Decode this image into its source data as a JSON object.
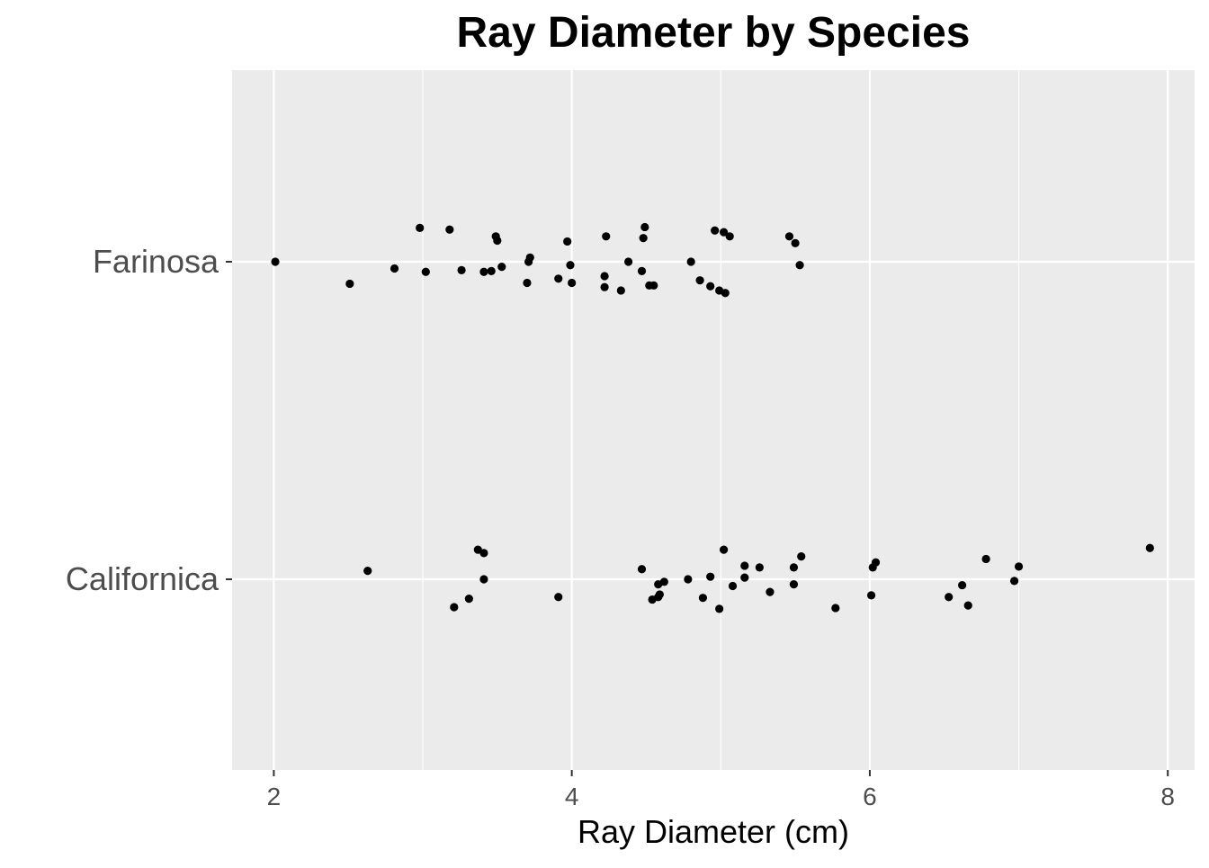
{
  "chart_data": {
    "type": "scatter",
    "title": "Ray Diameter by Species",
    "xlabel": "Ray Diameter (cm)",
    "ylabel": "",
    "xlim": [
      1.72,
      8.18
    ],
    "x_ticks": [
      2,
      4,
      6,
      8
    ],
    "x_tick_labels": [
      "2",
      "4",
      "6",
      "8"
    ],
    "categories": [
      "Californica",
      "Farinosa"
    ],
    "jitter": true,
    "grid": true,
    "legend": "none",
    "colors": {
      "panel_background": "#ebebeb",
      "grid_line": "#ffffff",
      "point": "#000000",
      "tick_label": "#4d4d4d",
      "tick_mark": "#333333"
    },
    "series": [
      {
        "category": "Farinosa",
        "points": [
          {
            "x": 2.01,
            "y": 0.0
          },
          {
            "x": 2.51,
            "y": -0.26
          },
          {
            "x": 2.81,
            "y": -0.08
          },
          {
            "x": 2.98,
            "y": 0.4
          },
          {
            "x": 3.02,
            "y": -0.12
          },
          {
            "x": 3.18,
            "y": 0.38
          },
          {
            "x": 3.26,
            "y": -0.1
          },
          {
            "x": 3.41,
            "y": -0.12
          },
          {
            "x": 3.46,
            "y": -0.11
          },
          {
            "x": 3.49,
            "y": 0.3
          },
          {
            "x": 3.5,
            "y": 0.25
          },
          {
            "x": 3.53,
            "y": -0.06
          },
          {
            "x": 3.7,
            "y": -0.25
          },
          {
            "x": 3.71,
            "y": 0.0
          },
          {
            "x": 3.72,
            "y": 0.05
          },
          {
            "x": 3.91,
            "y": -0.2
          },
          {
            "x": 3.97,
            "y": 0.24
          },
          {
            "x": 3.99,
            "y": -0.04
          },
          {
            "x": 4.0,
            "y": -0.25
          },
          {
            "x": 4.22,
            "y": -0.3
          },
          {
            "x": 4.22,
            "y": -0.17
          },
          {
            "x": 4.23,
            "y": 0.3
          },
          {
            "x": 4.33,
            "y": -0.34
          },
          {
            "x": 4.38,
            "y": 0.0
          },
          {
            "x": 4.47,
            "y": -0.11
          },
          {
            "x": 4.48,
            "y": 0.28
          },
          {
            "x": 4.49,
            "y": 0.41
          },
          {
            "x": 4.52,
            "y": -0.28
          },
          {
            "x": 4.55,
            "y": -0.28
          },
          {
            "x": 4.8,
            "y": 0.0
          },
          {
            "x": 4.86,
            "y": -0.22
          },
          {
            "x": 4.93,
            "y": -0.29
          },
          {
            "x": 4.96,
            "y": 0.37
          },
          {
            "x": 4.99,
            "y": -0.34
          },
          {
            "x": 5.02,
            "y": 0.35
          },
          {
            "x": 5.03,
            "y": -0.37
          },
          {
            "x": 5.06,
            "y": 0.3
          },
          {
            "x": 5.46,
            "y": 0.3
          },
          {
            "x": 5.5,
            "y": 0.22
          },
          {
            "x": 5.53,
            "y": -0.04
          }
        ]
      },
      {
        "category": "Californica",
        "points": [
          {
            "x": 2.63,
            "y": 0.1
          },
          {
            "x": 3.21,
            "y": -0.33
          },
          {
            "x": 3.31,
            "y": -0.23
          },
          {
            "x": 3.37,
            "y": 0.35
          },
          {
            "x": 3.41,
            "y": 0.31
          },
          {
            "x": 3.41,
            "y": 0.0
          },
          {
            "x": 3.91,
            "y": -0.21
          },
          {
            "x": 4.47,
            "y": 0.12
          },
          {
            "x": 4.54,
            "y": -0.24
          },
          {
            "x": 4.58,
            "y": -0.06
          },
          {
            "x": 4.58,
            "y": -0.21
          },
          {
            "x": 4.59,
            "y": -0.18
          },
          {
            "x": 4.62,
            "y": -0.03
          },
          {
            "x": 4.78,
            "y": 0.0
          },
          {
            "x": 4.88,
            "y": -0.22
          },
          {
            "x": 4.93,
            "y": 0.03
          },
          {
            "x": 4.99,
            "y": -0.35
          },
          {
            "x": 5.02,
            "y": 0.35
          },
          {
            "x": 5.08,
            "y": -0.08
          },
          {
            "x": 5.16,
            "y": 0.02
          },
          {
            "x": 5.16,
            "y": 0.16
          },
          {
            "x": 5.26,
            "y": 0.14
          },
          {
            "x": 5.33,
            "y": -0.15
          },
          {
            "x": 5.49,
            "y": -0.06
          },
          {
            "x": 5.49,
            "y": 0.14
          },
          {
            "x": 5.54,
            "y": 0.27
          },
          {
            "x": 5.77,
            "y": -0.34
          },
          {
            "x": 6.01,
            "y": -0.19
          },
          {
            "x": 6.02,
            "y": 0.14
          },
          {
            "x": 6.04,
            "y": 0.2
          },
          {
            "x": 6.53,
            "y": -0.21
          },
          {
            "x": 6.62,
            "y": -0.07
          },
          {
            "x": 6.66,
            "y": -0.31
          },
          {
            "x": 6.78,
            "y": 0.24
          },
          {
            "x": 6.97,
            "y": -0.02
          },
          {
            "x": 7.0,
            "y": 0.15
          },
          {
            "x": 7.88,
            "y": 0.37
          }
        ]
      }
    ]
  }
}
